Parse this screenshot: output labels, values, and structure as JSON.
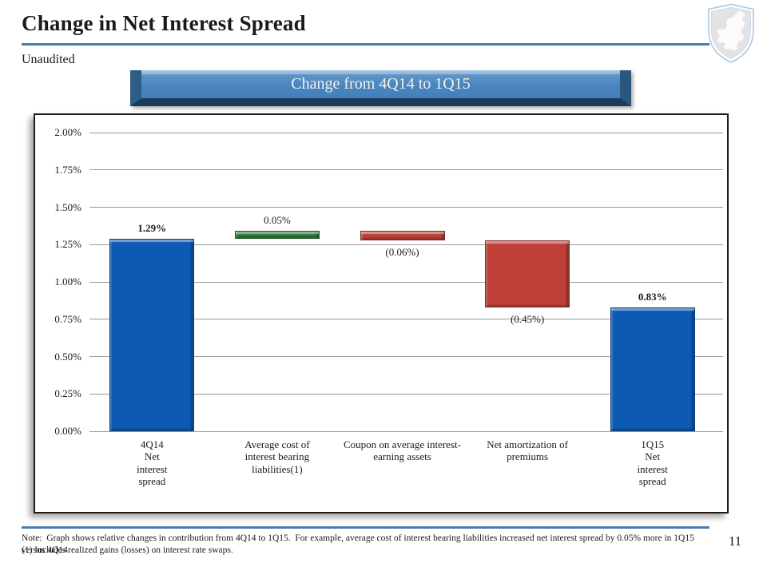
{
  "page": {
    "title": "Change in Net Interest Spread",
    "subtitle": "Unaudited",
    "note_line1": "Note:  Graph shows relative changes in contribution from 4Q14 to 1Q15.  For example, average cost of interest bearing liabilities increased net interest spread by 0.05% more in 1Q15 versus 4Q14.",
    "note_line2": "(1) Includes realized gains (losses) on interest rate swaps.",
    "page_number": "11"
  },
  "banner": {
    "label": "Change from 4Q14 to 1Q15"
  },
  "colors": {
    "accent_rule": "#4a7dad",
    "banner_fill": "#4a85bf",
    "banner_edge_dark": "#1b3b5b",
    "bar_blue": "#0d5ab4",
    "bar_green": "#2e7d3c",
    "bar_red": "#bf4038",
    "gridline": "#9a9a9a"
  },
  "chart_data": {
    "type": "bar",
    "subtype": "waterfall",
    "title": "Change from 4Q14 to 1Q15",
    "xlabel": "",
    "ylabel": "",
    "ylim": [
      0.0,
      2.0
    ],
    "ytick_step": 0.25,
    "yticks": [
      "2.00%",
      "1.75%",
      "1.50%",
      "1.25%",
      "1.00%",
      "0.75%",
      "0.50%",
      "0.25%",
      "0.00%"
    ],
    "grid": true,
    "legend": false,
    "categories": [
      "4Q14 Net interest spread",
      "Average cost of interest bearing liabilities(1)",
      "Coupon on average interest-earning assets",
      "Net amortization of premiums",
      "1Q15 Net interest spread"
    ],
    "bars": [
      {
        "category_lines": [
          "4Q14",
          "Net",
          "interest",
          "spread"
        ],
        "from": 0.0,
        "to": 1.29,
        "change": 1.29,
        "color": "blue",
        "label": "1.29%",
        "label_pos": "above",
        "label_bold": true
      },
      {
        "category_lines": [
          "Average cost of",
          "interest bearing",
          "liabilities(1)"
        ],
        "from": 1.29,
        "to": 1.34,
        "change": 0.05,
        "color": "green",
        "label": "0.05%",
        "label_pos": "above",
        "label_bold": false
      },
      {
        "category_lines": [
          "Coupon on average interest-",
          "earning assets"
        ],
        "from": 1.34,
        "to": 1.28,
        "change": -0.06,
        "color": "red",
        "label": "(0.06%)",
        "label_pos": "below",
        "label_bold": false
      },
      {
        "category_lines": [
          "Net amortization of",
          "premiums"
        ],
        "from": 1.28,
        "to": 0.83,
        "change": -0.45,
        "color": "red",
        "label": "(0.45%)",
        "label_pos": "below",
        "label_bold": false
      },
      {
        "category_lines": [
          "1Q15",
          "Net",
          "interest",
          "spread"
        ],
        "from": 0.0,
        "to": 0.83,
        "change": 0.83,
        "color": "blue",
        "label": "0.83%",
        "label_pos": "above",
        "label_bold": true
      }
    ]
  }
}
